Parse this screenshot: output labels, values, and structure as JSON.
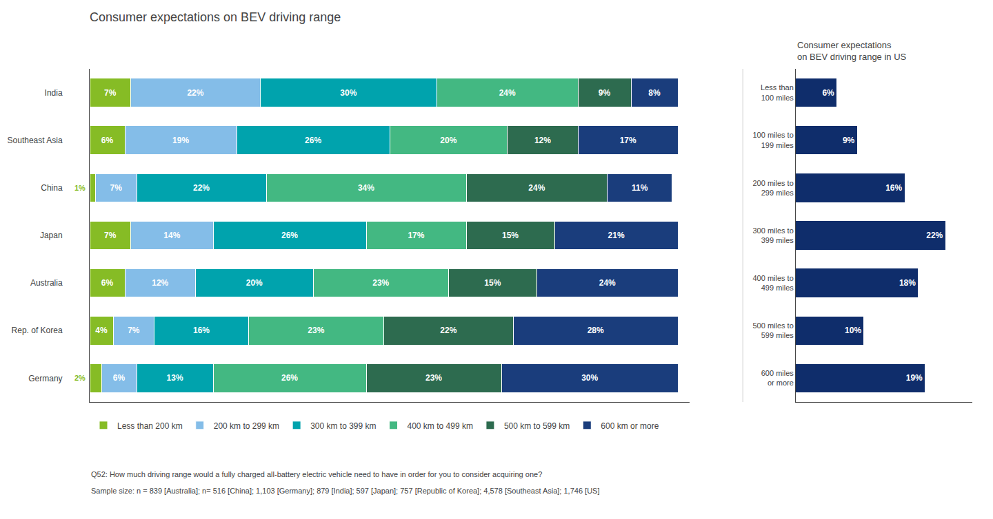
{
  "chart_data": [
    {
      "type": "bar",
      "title": "Consumer expectations on BEV driving range",
      "orientation": "horizontal",
      "stacked": true,
      "categories": [
        "India",
        "Southeast Asia",
        "China",
        "Japan",
        "Australia",
        "Rep. of Korea",
        "Germany"
      ],
      "series": [
        {
          "name": "Less than 200 km",
          "color": "#86bc25",
          "values": [
            7,
            6,
            1,
            7,
            6,
            4,
            2
          ],
          "value_labels": [
            "7%",
            "6%",
            "1%",
            "7%",
            "6%",
            "4%",
            "2%"
          ]
        },
        {
          "name": "200 km to 299 km",
          "color": "#84bde8",
          "values": [
            22,
            19,
            7,
            14,
            12,
            7,
            6
          ],
          "value_labels": [
            "22%",
            "19%",
            "7%",
            "14%",
            "12%",
            "7%",
            "6%"
          ]
        },
        {
          "name": "300 km to 399 km",
          "color": "#00a3ad",
          "values": [
            30,
            26,
            22,
            26,
            20,
            16,
            13
          ],
          "value_labels": [
            "30%",
            "26%",
            "22%",
            "26%",
            "20%",
            "16%",
            "13%"
          ]
        },
        {
          "name": "400 km to 499 km",
          "color": "#43b882",
          "values": [
            24,
            20,
            34,
            17,
            23,
            23,
            26
          ],
          "value_labels": [
            "24%",
            "20%",
            "34%",
            "17%",
            "23%",
            "23%",
            "26%"
          ]
        },
        {
          "name": "500 km to 599 km",
          "color": "#2d6b4f",
          "values": [
            9,
            12,
            24,
            15,
            15,
            22,
            23
          ],
          "value_labels": [
            "9%",
            "12%",
            "24%",
            "15%",
            "15%",
            "22%",
            "23%"
          ]
        },
        {
          "name": "600 km or more",
          "color": "#1a3d7c",
          "values": [
            8,
            17,
            11,
            21,
            24,
            28,
            30
          ],
          "value_labels": [
            "8%",
            "17%",
            "11%",
            "21%",
            "24%",
            "28%",
            "30%"
          ]
        }
      ],
      "xlim": [
        0,
        102
      ],
      "grid": false,
      "tick_labels": "y",
      "data_labels": true,
      "legend": "bottom",
      "annotations": [
        "Q52: How much driving range would a fully charged all-battery electric vehicle need to have in order for you to consider acquiring one?",
        "Sample size: n = 839 [Australia]; n= 516 [China]; 1,103 [Germany]; 879 [India]; 597 [Japan]; 757 [Republic of Korea]; 4,578 [Southeast Asia]; 1,746 [US]"
      ]
    },
    {
      "type": "bar",
      "title": "Consumer expectations\non BEV driving range in US",
      "orientation": "horizontal",
      "categories": [
        "Less than\n100 miles",
        "100 miles to\n199 miles",
        "200 miles to\n299 miles",
        "300 miles to\n399 miles",
        "400 miles to\n499 miles",
        "500 miles to\n599 miles",
        "600 miles\nor more"
      ],
      "values": [
        6,
        9,
        16,
        22,
        18,
        10,
        19
      ],
      "value_labels": [
        "6%",
        "9%",
        "16%",
        "22%",
        "18%",
        "10%",
        "19%"
      ],
      "color": "#0f2d6b",
      "xlim": [
        0,
        26
      ],
      "grid": false,
      "tick_labels": "y",
      "data_labels": true
    }
  ]
}
